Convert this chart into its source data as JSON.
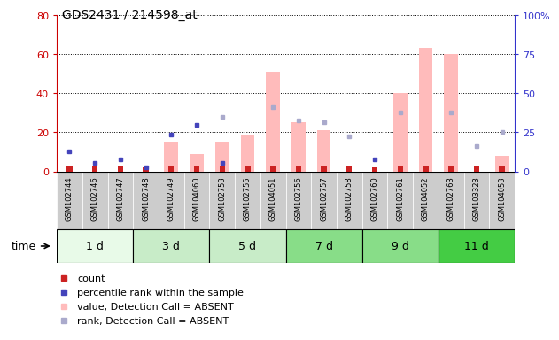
{
  "title": "GDS2431 / 214598_at",
  "samples": [
    "GSM102744",
    "GSM102746",
    "GSM102747",
    "GSM102748",
    "GSM102749",
    "GSM104060",
    "GSM102753",
    "GSM102755",
    "GSM104051",
    "GSM102756",
    "GSM102757",
    "GSM102758",
    "GSM102760",
    "GSM102761",
    "GSM104052",
    "GSM102763",
    "GSM103323",
    "GSM104053"
  ],
  "time_groups": [
    {
      "label": "1 d",
      "start": 0,
      "end": 3,
      "color": "#e8fae8"
    },
    {
      "label": "3 d",
      "start": 3,
      "end": 6,
      "color": "#c8ecc8"
    },
    {
      "label": "5 d",
      "start": 6,
      "end": 9,
      "color": "#c8ecc8"
    },
    {
      "label": "7 d",
      "start": 9,
      "end": 12,
      "color": "#88dd88"
    },
    {
      "label": "9 d",
      "start": 12,
      "end": 15,
      "color": "#88dd88"
    },
    {
      "label": "11 d",
      "start": 15,
      "end": 18,
      "color": "#44cc44"
    }
  ],
  "count_values": [
    3,
    3,
    3,
    2,
    3,
    3,
    3,
    3,
    3,
    3,
    3,
    3,
    2,
    3,
    3,
    3,
    3,
    3
  ],
  "percentile_rank_values": [
    10,
    4.5,
    6,
    2,
    19,
    24,
    4.5,
    null,
    null,
    null,
    null,
    null,
    6,
    null,
    null,
    null,
    null,
    null
  ],
  "absent_value_bars": [
    null,
    null,
    null,
    null,
    15,
    9,
    15,
    19,
    51,
    25,
    21,
    null,
    null,
    40,
    63,
    60,
    null,
    8
  ],
  "absent_rank_dots": [
    null,
    null,
    null,
    null,
    null,
    null,
    28,
    null,
    33,
    26,
    25,
    18,
    null,
    30,
    null,
    30,
    13,
    20
  ],
  "ylim_left": [
    0,
    80
  ],
  "ylim_right": [
    0,
    100
  ],
  "yticks_left": [
    0,
    20,
    40,
    60,
    80
  ],
  "yticks_right": [
    0,
    25,
    50,
    75,
    100
  ],
  "ytick_labels_right": [
    "0",
    "25",
    "50",
    "75",
    "100%"
  ],
  "bg_color": "#ffffff",
  "left_axis_color": "#cc0000",
  "right_axis_color": "#3333cc",
  "bar_color_count": "#cc2222",
  "bar_color_absent": "#ffbbbb",
  "dot_color_percentile": "#4444bb",
  "dot_color_absent_rank": "#aaaacc",
  "sample_bg_color": "#cccccc",
  "legend_items": [
    {
      "color": "#cc2222",
      "label": "count"
    },
    {
      "color": "#4444bb",
      "label": "percentile rank within the sample"
    },
    {
      "color": "#ffbbbb",
      "label": "value, Detection Call = ABSENT"
    },
    {
      "color": "#aaaacc",
      "label": "rank, Detection Call = ABSENT"
    }
  ]
}
